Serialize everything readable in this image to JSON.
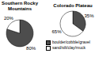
{
  "chart_data": [
    {
      "type": "pie",
      "title": "Southern Rocky Mountains",
      "categories": [
        "boulder/cobble/gravel",
        "sand/silt/clay/muck"
      ],
      "values": [
        80,
        20
      ],
      "value_labels": [
        "80%",
        "20%"
      ],
      "colors": [
        "#4d4d4d",
        "#ffffff"
      ],
      "data_labels": true
    },
    {
      "type": "pie",
      "title": "Colorado Plateau",
      "categories": [
        "boulder/cobble/gravel",
        "sand/silt/clay/muck"
      ],
      "values": [
        35,
        65
      ],
      "value_labels": [
        "35%",
        "65%"
      ],
      "colors": [
        "#4d4d4d",
        "#ffffff"
      ],
      "data_labels": true,
      "legend": "lower right"
    }
  ]
}
